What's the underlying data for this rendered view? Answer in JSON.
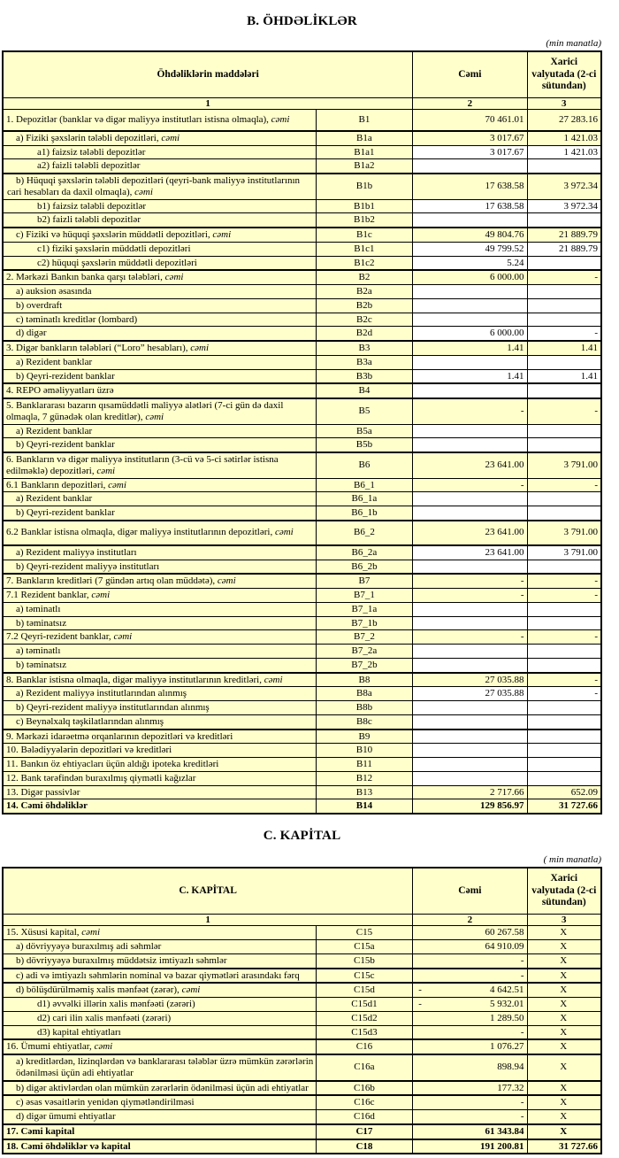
{
  "colors": {
    "cell_yellow": "#FFFFCC",
    "cell_white": "#FFFFFF",
    "border": "#000000",
    "text": "#000000"
  },
  "section_b": {
    "title": "B. ÖHDƏLİKLƏR",
    "unit_note": "(min manatla)",
    "header": {
      "items": "Öhdəliklərin maddələri",
      "total": "Cəmi",
      "fx": "Xarici valyutada (2-ci sütundan)"
    },
    "col_numbers": [
      "1",
      "2",
      "3"
    ],
    "rows": [
      {
        "label": "1. Depozitlər (banklar və digər maliyyə institutları istisna olmaqla), cəmi",
        "code": "B1",
        "total": "70 461.01",
        "fx": "27 283.16",
        "indent": 0,
        "tall": true
      },
      {
        "label": "a)  Fiziki şəxslərin tələbli depozitləri, cəmi",
        "code": "B1a",
        "total": "3 017.67",
        "fx": "1 421.03",
        "indent": 1,
        "thick_top": true
      },
      {
        "label": "a1) faizsiz tələbli depozitlər",
        "code": "B1a1",
        "total": "3 017.67",
        "fx": "1 421.03",
        "indent": 2,
        "white_bg": true
      },
      {
        "label": "a2) faizli tələbli depozitlər",
        "code": "B1a2",
        "total": "",
        "fx": "",
        "indent": 2,
        "white_bg": true
      },
      {
        "label": "b) Hüquqi şəxslərin tələbli depozitləri (qeyri-bank maliyyə institutlarının cari hesabları da daxil olmaqla), cəmi",
        "code": "B1b",
        "total": "17 638.58",
        "fx": "3 972.34",
        "indent": 1,
        "hang_indent": true,
        "thick_top": true
      },
      {
        "label": "b1) faizsiz tələbli depozitlər",
        "code": "B1b1",
        "total": "17 638.58",
        "fx": "3 972.34",
        "indent": 2,
        "white_bg": true
      },
      {
        "label": "b2) faizli tələbli depozitlər",
        "code": "B1b2",
        "total": "",
        "fx": "",
        "indent": 2,
        "white_bg": true
      },
      {
        "label": "c) Fiziki və hüquqi şəxslərin müddətli depozitləri, cəmi",
        "code": "B1c",
        "total": "49 804.76",
        "fx": "21 889.79",
        "indent": 1,
        "thick_top": true
      },
      {
        "label": "c1) fiziki şəxslərin müddətli depozitləri",
        "code": "B1c1",
        "total": "49 799.52",
        "fx": "21 889.79",
        "indent": 2,
        "white_bg": true
      },
      {
        "label": "c2) hüquqi şəxslərin müddətli depozitləri",
        "code": "B1c2",
        "total": "5.24",
        "fx": "",
        "indent": 2,
        "white_bg": true
      },
      {
        "label": "2. Mərkəzi Bankın banka qarşı tələbləri, cəmi",
        "code": "B2",
        "total": "6 000.00",
        "fx": "-",
        "indent": 0,
        "thick_top": true
      },
      {
        "label": "a) auksion əsasında",
        "code": "B2a",
        "total": "",
        "fx": "",
        "indent": 1,
        "white_bg": true
      },
      {
        "label": "b) overdraft",
        "code": "B2b",
        "total": "",
        "fx": "",
        "indent": 1,
        "white_bg": true
      },
      {
        "label": "c) təminatlı kreditlər (lombard)",
        "code": "B2c",
        "total": "",
        "fx": "",
        "indent": 1,
        "white_bg": true
      },
      {
        "label": "d) digər",
        "code": "B2d",
        "total": "6 000.00",
        "fx": "-",
        "indent": 1,
        "white_bg": true
      },
      {
        "label": "3. Digər bankların tələbləri (“Loro” hesabları), cəmi",
        "code": "B3",
        "total": "1.41",
        "fx": "1.41",
        "indent": 0,
        "thick_top": true
      },
      {
        "label": "a) Rezident banklar",
        "code": "B3a",
        "total": "",
        "fx": "",
        "indent": 1,
        "white_bg": true
      },
      {
        "label": "b) Qeyri-rezident banklar",
        "code": "B3b",
        "total": "1.41",
        "fx": "1.41",
        "indent": 1,
        "white_bg": true
      },
      {
        "label": "4. REPO əməliyyatları  üzrə",
        "code": "B4",
        "total": "",
        "fx": "",
        "indent": 0,
        "white_bg": true,
        "thick_top": true
      },
      {
        "label": "5. Banklararası bazarın qısamüddətli maliyyə alətləri (7-ci gün də daxil olmaqla, 7 günədək olan kreditlər), cəmi",
        "code": "B5",
        "total": "-",
        "fx": "-",
        "indent": 0,
        "thick_top": true
      },
      {
        "label": "a) Rezident banklar",
        "code": "B5a",
        "total": "",
        "fx": "",
        "indent": 1,
        "white_bg": true
      },
      {
        "label": "b) Qeyri-rezident banklar",
        "code": "B5b",
        "total": "",
        "fx": "",
        "indent": 1,
        "white_bg": true
      },
      {
        "label": "6. Bankların və digər maliyyə institutların (3-cü və 5-ci sətirlər istisna edilməklə) depozitləri, cəmi",
        "code": "B6",
        "total": "23 641.00",
        "fx": "3 791.00",
        "indent": 0,
        "thick_top": true
      },
      {
        "label": "6.1  Bankların depozitləri, cəmi",
        "code": "B6_1",
        "total": "-",
        "fx": "-",
        "indent": 0
      },
      {
        "label": "a) Rezident banklar",
        "code": "B6_1a",
        "total": "",
        "fx": "",
        "indent": 1,
        "white_bg": true
      },
      {
        "label": "b) Qeyri-rezident banklar",
        "code": "B6_1b",
        "total": "",
        "fx": "",
        "indent": 1,
        "white_bg": true
      },
      {
        "label": "6.2 Banklar istisna olmaqla, digər maliyyə institutlarının depozitləri, cəmi",
        "code": "B6_2",
        "total": "23 641.00",
        "fx": "3 791.00",
        "indent": 0,
        "thick_top": true,
        "tall2": true
      },
      {
        "label": "a) Rezident maliyyə institutları",
        "code": "B6_2a",
        "total": "23 641.00",
        "fx": "3 791.00",
        "indent": 1,
        "white_bg": true,
        "thick_top": true
      },
      {
        "label": "b) Qeyri-rezident maliyyə institutları",
        "code": "B6_2b",
        "total": "",
        "fx": "",
        "indent": 1,
        "white_bg": true
      },
      {
        "label": "7. Bankların kreditləri (7 gündən artıq olan müddətə), cəmi",
        "code": "B7",
        "total": "-",
        "fx": "-",
        "indent": 0,
        "thick_top": true
      },
      {
        "label": "7.1 Rezident banklar, cəmi",
        "code": "B7_1",
        "total": "-",
        "fx": "-",
        "indent": 0
      },
      {
        "label": "a) təminatlı",
        "code": "B7_1a",
        "total": "",
        "fx": "",
        "indent": 1,
        "white_bg": true
      },
      {
        "label": "b) təminatsız",
        "code": "B7_1b",
        "total": "",
        "fx": "",
        "indent": 1,
        "white_bg": true
      },
      {
        "label": "7.2 Qeyri-rezident banklar, cəmi",
        "code": "B7_2",
        "total": "-",
        "fx": "-",
        "indent": 0
      },
      {
        "label": "a) təminatlı",
        "code": "B7_2a",
        "total": "",
        "fx": "",
        "indent": 1,
        "white_bg": true
      },
      {
        "label": "b) təminatsız",
        "code": "B7_2b",
        "total": "",
        "fx": "",
        "indent": 1,
        "white_bg": true
      },
      {
        "label": "8. Banklar istisna olmaqla, digər maliyyə institutlarının kreditləri, cəmi",
        "code": "B8",
        "total": "27 035.88",
        "fx": "-",
        "indent": 0,
        "thick_top": true
      },
      {
        "label": "a) Rezident maliyyə institutlarından alınmış",
        "code": "B8a",
        "total": "27 035.88",
        "fx": "-",
        "indent": 1,
        "white_bg": true
      },
      {
        "label": "b) Qeyri-rezident maliyyə institutlarından alınmış",
        "code": "B8b",
        "total": "",
        "fx": "",
        "indent": 1,
        "white_bg": true
      },
      {
        "label": "c) Beynəlxalq təşkilatlarından alınmış",
        "code": "B8c",
        "total": "",
        "fx": "",
        "indent": 1,
        "white_bg": true
      },
      {
        "label": "9. Mərkəzi idarəetmə orqanlarının depozitləri və kreditləri",
        "code": "B9",
        "total": "",
        "fx": "",
        "indent": 0,
        "white_bg": true,
        "thick_top": true
      },
      {
        "label": "10. Bələdiyyələrin depozitləri və kreditləri",
        "code": "B10",
        "total": "",
        "fx": "",
        "indent": 0,
        "white_bg": true
      },
      {
        "label": "11. Bankın öz ehtiyacları üçün aldığı ipoteka kreditləri",
        "code": "B11",
        "total": "",
        "fx": "",
        "indent": 0,
        "white_bg": true
      },
      {
        "label": "12. Bank tərəfindən buraxılmış qiymətli kağızlar",
        "code": "B12",
        "total": "",
        "fx": "",
        "indent": 0,
        "white_bg": true
      },
      {
        "label": "13. Digər passivlər",
        "code": "B13",
        "total": "2 717.66",
        "fx": "652.09",
        "indent": 0
      },
      {
        "label": "14. Cəmi öhdəliklər",
        "code": "B14",
        "total": "129 856.97",
        "fx": "31 727.66",
        "indent": 0,
        "bold": true
      }
    ]
  },
  "section_c": {
    "title": "C. KAPİTAL",
    "unit_note": "( min manatla)",
    "header": {
      "items": "C. KAPİTAL",
      "total": "Cəmi",
      "fx": "Xarici valyutada (2-ci sütundan)"
    },
    "col_numbers": [
      "1",
      "2",
      "3"
    ],
    "rows": [
      {
        "label": "15. Xüsusi kapital, cəmi",
        "code": "C15",
        "total": "60 267.58",
        "fx": "X",
        "indent": 0
      },
      {
        "label": "a) dövriyyəyə buraxılmış adi səhmlər",
        "code": "C15a",
        "total": "64 910.09",
        "fx": "X",
        "indent": 1
      },
      {
        "label": "b) dövriyyəyə buraxılmış müddətsiz imtiyazlı səhmlər",
        "code": "C15b",
        "total": "-",
        "fx": "X",
        "indent": 1
      },
      {
        "label": "c) adi və imtiyazlı səhmlərin nominal və bazar qiymətləri arasındakı fərq",
        "code": "C15c",
        "total": "-",
        "fx": "X",
        "indent": 1,
        "hang_indent": true,
        "thick_top": true
      },
      {
        "label": "d) bölüşdürülməmiş xalis mənfəət (zərər), cəmi",
        "code": "C15d",
        "total": "4 642.51",
        "fx": "X",
        "indent": 1,
        "negative": true,
        "thick_top": true
      },
      {
        "label": "d1) əvvəlki illərin xalis mənfəəti (zərəri)",
        "code": "C15d1",
        "total": "5 932.01",
        "fx": "X",
        "indent": 2,
        "negative": true
      },
      {
        "label": "d2) cari ilin xalis mənfəəti (zərəri)",
        "code": "C15d2",
        "total": "1 289.50",
        "fx": "X",
        "indent": 2
      },
      {
        "label": "d3) kapital ehtiyatları",
        "code": "C15d3",
        "total": "-",
        "fx": "X",
        "indent": 2
      },
      {
        "label": "16. Ümumi ehtiyatlar, cəmi",
        "code": "C16",
        "total": "1 076.27",
        "fx": "X",
        "indent": 0,
        "thick_top": true
      },
      {
        "label": "a) kreditlərdən, lizinqlərdən və banklararası  tələblər üzrə mümkün zərərlərin ödənilməsi üçün adi ehtiyatlar",
        "code": "C16a",
        "total": "898.94",
        "fx": "X",
        "indent": 1,
        "thick_top": true
      },
      {
        "label": "b) digər aktivlərdən olan mümkün zərərlərin ödənilməsi üçün adi ehtiyatlar",
        "code": "C16b",
        "total": "177.32",
        "fx": "X",
        "indent": 1,
        "thick_top": true
      },
      {
        "label": "c) əsas vəsaitlərin yenidən qiymətləndirilməsi",
        "code": "C16c",
        "total": "-",
        "fx": "X",
        "indent": 1,
        "thick_top": true
      },
      {
        "label": "d) digər ümumi ehtiyatlar",
        "code": "C16d",
        "total": "-",
        "fx": "X",
        "indent": 1
      },
      {
        "label": "17. Cəmi kapital",
        "code": "C17",
        "total": "61 343.84",
        "fx": "X",
        "indent": 0,
        "bold": true,
        "thick_top": true
      },
      {
        "label": "18. Cəmi öhdəliklər və kapital",
        "code": "C18",
        "total": "191 200.81",
        "fx": "31 727.66",
        "indent": 0,
        "bold": true,
        "thick_top": true
      }
    ]
  }
}
